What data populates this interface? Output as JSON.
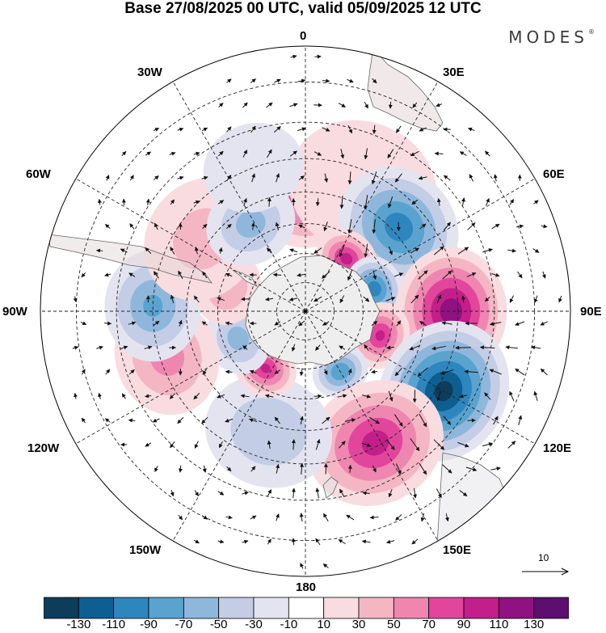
{
  "title": "Base 27/08/2025 00 UTC, valid 05/09/2025 12 UTC",
  "brand": "MODES",
  "brand_mark": "®",
  "longitude_labels": {
    "n0": "0",
    "e30": "30E",
    "e60": "60E",
    "e90": "90E",
    "e120": "120E",
    "e150": "150E",
    "s180": "180",
    "w150": "150W",
    "w120": "120W",
    "w90": "90W",
    "w60": "60W",
    "w30": "30W"
  },
  "reference_vector": {
    "magnitude": "10"
  },
  "colorbar": {
    "colors": [
      "#0e3d5c",
      "#0d5f91",
      "#2e86be",
      "#5aa3cf",
      "#8fb7dc",
      "#c3cde6",
      "#e4e4f1",
      "#ffffff",
      "#f9dcdf",
      "#f5b6c4",
      "#ef86b0",
      "#e2469c",
      "#c21f8a",
      "#8f1280",
      "#5c0f6f"
    ],
    "ticks": [
      "-130",
      "-110",
      "-90",
      "-70",
      "-50",
      "-30",
      "-10",
      "10",
      "30",
      "50",
      "70",
      "90",
      "110",
      "130"
    ]
  },
  "anomaly_centers": [
    {
      "lon": 0,
      "lat": -52,
      "value": 80,
      "spread": 13
    },
    {
      "lon": 25,
      "lat": -45,
      "value": 25,
      "spread": 16
    },
    {
      "lon": 48,
      "lat": -48,
      "value": -100,
      "spread": 14
    },
    {
      "lon": 38,
      "lat": -67,
      "value": 95,
      "spread": 9
    },
    {
      "lon": 72,
      "lat": -65,
      "value": -100,
      "spread": 9
    },
    {
      "lon": 90,
      "lat": -42,
      "value": 120,
      "spread": 13
    },
    {
      "lon": 108,
      "lat": -63,
      "value": 90,
      "spread": 9
    },
    {
      "lon": 120,
      "lat": -38,
      "value": -135,
      "spread": 14
    },
    {
      "lon": 150,
      "lat": -66,
      "value": -85,
      "spread": 8
    },
    {
      "lon": 152,
      "lat": -41,
      "value": 95,
      "spread": 14
    },
    {
      "lon": 197,
      "lat": -48,
      "value": -45,
      "spread": 14
    },
    {
      "lon": 215,
      "lat": -66,
      "value": 90,
      "spread": 9
    },
    {
      "lon": 248,
      "lat": -65,
      "value": -55,
      "spread": 10
    },
    {
      "lon": 252,
      "lat": -42,
      "value": 55,
      "spread": 12
    },
    {
      "lon": 272,
      "lat": -40,
      "value": -70,
      "spread": 11
    },
    {
      "lon": 287,
      "lat": -62,
      "value": 45,
      "spread": 10
    },
    {
      "lon": 305,
      "lat": -48,
      "value": 35,
      "spread": 14
    },
    {
      "lon": 328,
      "lat": -55,
      "value": -55,
      "spread": 11
    },
    {
      "lon": 340,
      "lat": -40,
      "value": -25,
      "spread": 10
    }
  ]
}
